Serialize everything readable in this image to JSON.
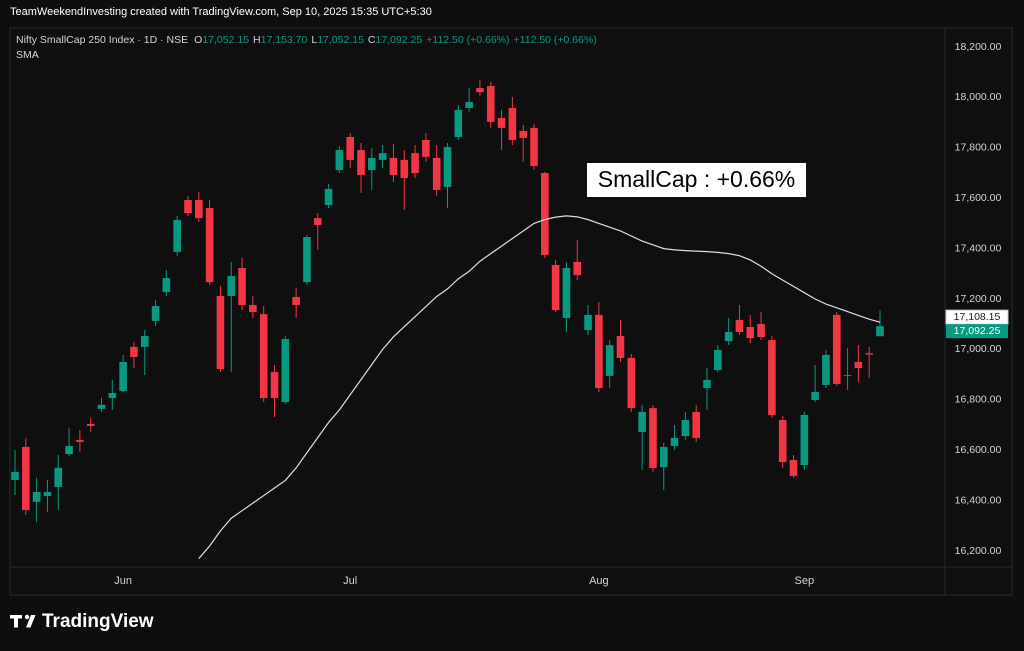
{
  "watermark_header": "TeamWeekendInvesting created with TradingView.com, Sep 10, 2025 15:35 UTC+5:30",
  "brand": "TradingView",
  "chart_data": {
    "type": "candlestick",
    "title": "Nifty SmallCap 250 Index · 1D · NSE",
    "legend_values": [
      {
        "label": "O",
        "value": "17,052.15"
      },
      {
        "label": "H",
        "value": "17,153.70"
      },
      {
        "label": "L",
        "value": "17,052.15"
      },
      {
        "label": "C",
        "value": "17,092.25"
      }
    ],
    "change": [
      "+112.50 (+0.66%)",
      "+112.50 (+0.66%)"
    ],
    "annotation": "SmallCap : +0.66%",
    "categories": [
      null,
      null,
      null,
      null,
      null,
      null,
      null,
      null,
      null,
      null,
      "Jun",
      null,
      null,
      null,
      null,
      null,
      null,
      null,
      null,
      null,
      null,
      null,
      null,
      null,
      null,
      null,
      null,
      null,
      null,
      null,
      null,
      "Jul",
      null,
      null,
      null,
      null,
      null,
      null,
      null,
      null,
      null,
      null,
      null,
      null,
      null,
      null,
      null,
      null,
      null,
      null,
      null,
      null,
      null,
      null,
      "Aug",
      null,
      null,
      null,
      null,
      null,
      null,
      null,
      null,
      null,
      null,
      null,
      null,
      null,
      null,
      null,
      null,
      null,
      null,
      "Sep",
      null,
      null,
      null,
      null,
      null,
      null,
      null
    ],
    "open": [
      16482,
      16613,
      16395,
      16418,
      16454,
      16585,
      16641,
      16704,
      16764,
      16807,
      16835,
      17010,
      17010,
      17113,
      17228,
      17387,
      17593,
      17593,
      17561,
      17212,
      17212,
      17323,
      17176,
      17140,
      16910,
      16791,
      17208,
      17267,
      17521,
      17573,
      17712,
      17843,
      17791,
      17712,
      17752,
      17760,
      17752,
      17779,
      17831,
      17760,
      17645,
      17843,
      17958,
      18037,
      18045,
      17918,
      17958,
      17867,
      17879,
      17700,
      17335,
      17125,
      17347,
      17077,
      17137,
      16895,
      17053,
      16966,
      16672,
      16767,
      16533,
      16617,
      16656,
      16752,
      16847,
      16918,
      17033,
      17117,
      17089,
      17101,
      17037,
      16720,
      16561,
      16541,
      16799,
      16859,
      17137,
      16894,
      16950,
      16985,
      17052.15
    ],
    "high": [
      16601,
      16649,
      16490,
      16482,
      16581,
      16688,
      16680,
      16728,
      16807,
      16879,
      16978,
      17030,
      17077,
      17196,
      17315,
      17530,
      17609,
      17625,
      17593,
      17252,
      17347,
      17363,
      17212,
      17172,
      16938,
      17053,
      17244,
      17454,
      17541,
      17657,
      17807,
      17859,
      17819,
      17799,
      17811,
      17815,
      17791,
      17811,
      17859,
      17811,
      17819,
      17970,
      18037,
      18069,
      18061,
      17950,
      18002,
      17891,
      17894,
      17704,
      17355,
      17347,
      17434,
      17176,
      17188,
      17037,
      17117,
      16982,
      16780,
      16779,
      16629,
      16700,
      16752,
      16780,
      16926,
      17017,
      17125,
      17176,
      17136,
      17149,
      17053,
      16736,
      16581,
      16752,
      16938,
      16998,
      17148,
      17006,
      17017,
      17010,
      17153.7
    ],
    "low": [
      16422,
      16343,
      16315,
      16355,
      16363,
      16577,
      16593,
      16672,
      16752,
      16760,
      16831,
      16926,
      16898,
      17093,
      17212,
      17371,
      17530,
      17506,
      17256,
      16910,
      16910,
      17156,
      17125,
      16791,
      16732,
      16783,
      17125,
      17256,
      17395,
      17561,
      17700,
      17720,
      17621,
      17633,
      17720,
      17664,
      17553,
      17680,
      17744,
      17609,
      17561,
      17831,
      17942,
      18006,
      17879,
      17791,
      17811,
      17744,
      17712,
      17363,
      17148,
      17069,
      17276,
      17057,
      16831,
      16847,
      16950,
      16752,
      16522,
      16514,
      16442,
      16601,
      16641,
      16633,
      16760,
      16910,
      17017,
      17057,
      17025,
      17037,
      16728,
      16529,
      16490,
      16522,
      16791,
      16847,
      16855,
      16839,
      16871,
      16887,
      17052.15
    ],
    "close": [
      16514,
      16363,
      16434,
      16434,
      16530,
      16617,
      16633,
      16696,
      16780,
      16827,
      16950,
      16970,
      17053,
      17172,
      17283,
      17514,
      17541,
      17521,
      17267,
      16922,
      17291,
      17176,
      17148,
      16807,
      16807,
      17041,
      17176,
      17446,
      17494,
      17637,
      17791,
      17752,
      17692,
      17760,
      17779,
      17692,
      17680,
      17700,
      17764,
      17633,
      17803,
      17950,
      17982,
      18021,
      17903,
      17879,
      17831,
      17839,
      17728,
      17375,
      17156,
      17323,
      17295,
      17137,
      16847,
      17017,
      16966,
      16767,
      16752,
      16529,
      16613,
      16649,
      16720,
      16649,
      16879,
      16998,
      17069,
      17069,
      17045,
      17049,
      16740,
      16553,
      16498,
      16740,
      16831,
      16978,
      16863,
      16898,
      16926,
      16979.75,
      17092.25
    ],
    "up_color": "#089981",
    "down_color": "#f23645",
    "close_label": "17,092.25",
    "series": [
      {
        "name": "SMA",
        "color": "#dedede",
        "value_label": "17,108.15",
        "values": [
          null,
          null,
          null,
          null,
          null,
          null,
          null,
          null,
          null,
          null,
          null,
          null,
          null,
          null,
          null,
          null,
          null,
          16170,
          16220,
          16280,
          16330,
          16360,
          16390,
          16420,
          16450,
          16480,
          16530,
          16590,
          16650,
          16710,
          16760,
          16820,
          16880,
          16940,
          17000,
          17050,
          17090,
          17130,
          17170,
          17210,
          17240,
          17280,
          17310,
          17350,
          17380,
          17410,
          17440,
          17470,
          17500,
          17515,
          17525,
          17530,
          17526,
          17515,
          17500,
          17485,
          17470,
          17450,
          17430,
          17415,
          17400,
          17395,
          17392,
          17390,
          17388,
          17385,
          17380,
          17372,
          17355,
          17330,
          17300,
          17275,
          17250,
          17225,
          17200,
          17180,
          17165,
          17150,
          17135,
          17120,
          17108.15
        ]
      }
    ],
    "ylim": [
      16136.5,
      18267.5
    ],
    "yticks": [
      {
        "value": 16200,
        "label": "16,200.00"
      },
      {
        "value": 16400,
        "label": "16,400.00"
      },
      {
        "value": 16600,
        "label": "16,600.00"
      },
      {
        "value": 16800,
        "label": "16,800.00"
      },
      {
        "value": 17000,
        "label": "17,000.00"
      },
      {
        "value": 17200,
        "label": "17,200.00"
      },
      {
        "value": 17400,
        "label": "17,400.00"
      },
      {
        "value": 17600,
        "label": "17,600.00"
      },
      {
        "value": 17800,
        "label": "17,800.00"
      },
      {
        "value": 18000,
        "label": "18,000.00"
      },
      {
        "value": 18200,
        "label": "18,200.00"
      }
    ],
    "grid": false
  }
}
